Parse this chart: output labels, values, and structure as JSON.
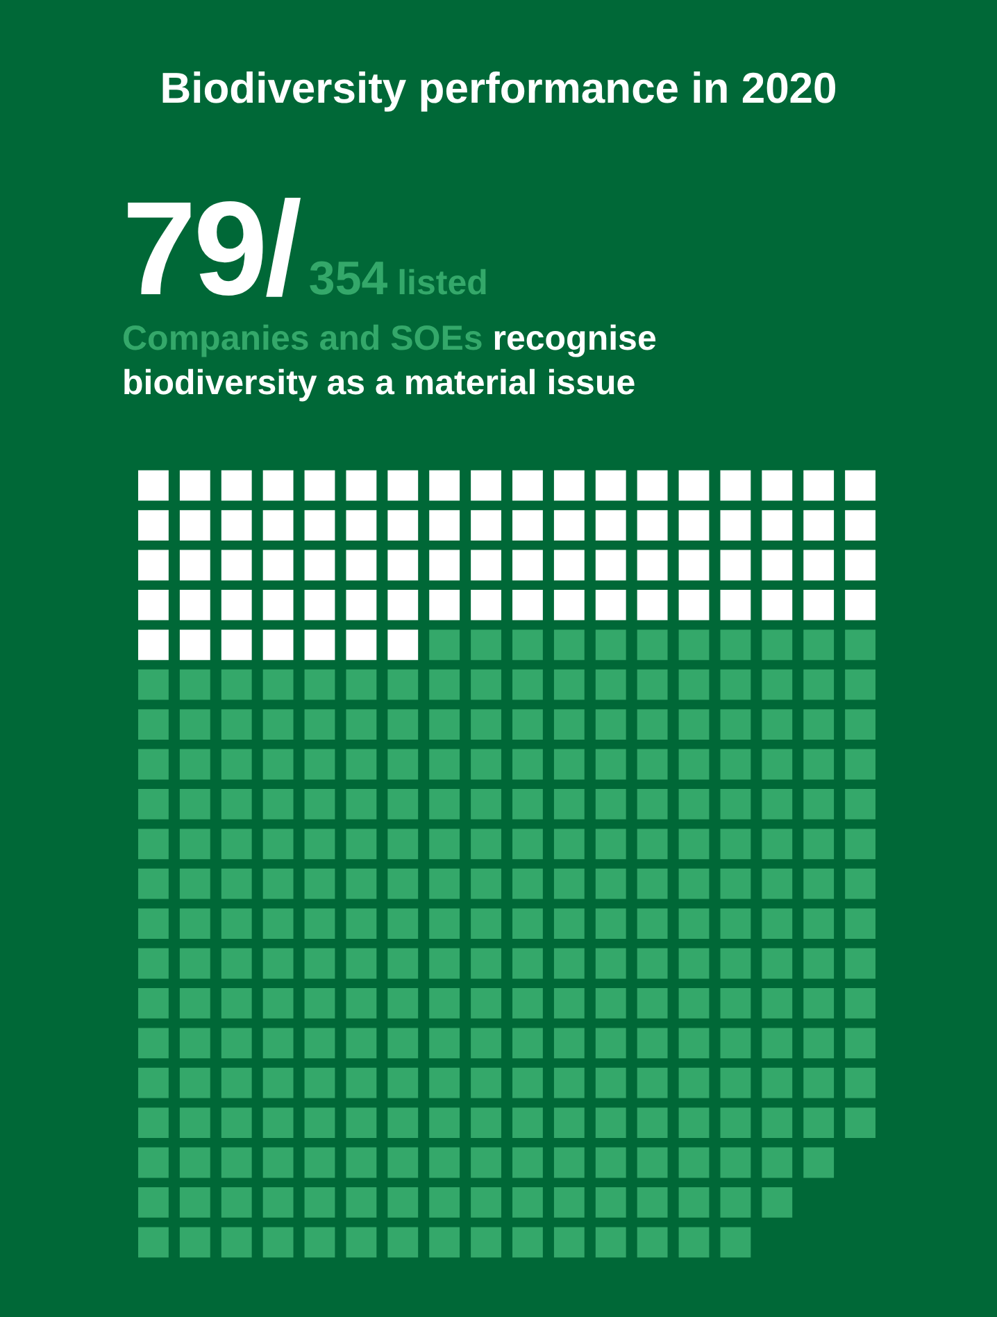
{
  "chart_data": {
    "type": "other",
    "title": "Biodiversity performance in 2020",
    "values": [
      79,
      354
    ],
    "value_labels": [
      "79/",
      "354"
    ],
    "colors": [
      "#ffffff",
      "#34a86a"
    ],
    "annotations": [
      "listed",
      "Companies and SOEs",
      "recognise",
      "biodiversity as a material issue"
    ]
  }
}
